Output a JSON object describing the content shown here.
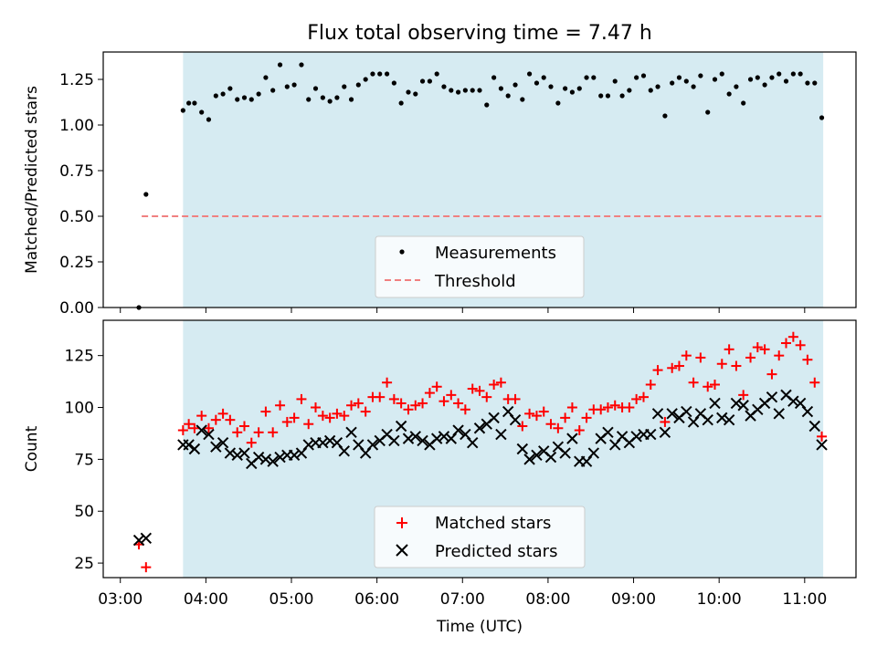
{
  "chart_data": [
    {
      "type": "scatter",
      "title": "Flux total observing time = 7.47 h",
      "ylabel": "Matched/Predicted stars",
      "xlabel": "",
      "ylim": [
        0,
        1.4
      ],
      "xlim_hours": [
        2.8,
        11.6
      ],
      "yticks": [
        0.0,
        0.25,
        0.5,
        0.75,
        1.0,
        1.25
      ],
      "ytick_labels": [
        "0.00",
        "0.25",
        "0.50",
        "0.75",
        "1.00",
        "1.25"
      ],
      "observing_window_hours": [
        3.733,
        11.217
      ],
      "threshold": {
        "name": "Threshold",
        "value": 0.5,
        "x_start_hours": 3.25,
        "x_end_hours": 11.2,
        "color": "#f08080"
      },
      "legend": {
        "placement": "lower-center",
        "entries": [
          "Measurements",
          "Threshold"
        ]
      },
      "series": [
        {
          "name": "Measurements",
          "color": "#000000",
          "x": [
            3.217,
            3.3,
            3.733,
            3.8,
            3.867,
            3.95,
            4.033,
            4.117,
            4.2,
            4.283,
            4.367,
            4.45,
            4.533,
            4.617,
            4.7,
            4.783,
            4.867,
            4.95,
            5.033,
            5.117,
            5.2,
            5.283,
            5.367,
            5.45,
            5.533,
            5.617,
            5.7,
            5.783,
            5.867,
            5.95,
            6.033,
            6.117,
            6.2,
            6.283,
            6.367,
            6.45,
            6.533,
            6.617,
            6.7,
            6.783,
            6.867,
            6.95,
            7.033,
            7.117,
            7.2,
            7.283,
            7.367,
            7.45,
            7.533,
            7.617,
            7.7,
            7.783,
            7.867,
            7.95,
            8.033,
            8.117,
            8.2,
            8.283,
            8.367,
            8.45,
            8.533,
            8.617,
            8.7,
            8.783,
            8.867,
            8.95,
            9.033,
            9.117,
            9.2,
            9.283,
            9.367,
            9.45,
            9.533,
            9.617,
            9.7,
            9.783,
            9.867,
            9.95,
            10.033,
            10.117,
            10.2,
            10.283,
            10.367,
            10.45,
            10.533,
            10.617,
            10.7,
            10.783,
            10.867,
            10.95,
            11.033,
            11.117,
            11.2
          ],
          "y": [
            0.0,
            0.62,
            1.08,
            1.12,
            1.12,
            1.07,
            1.03,
            1.16,
            1.17,
            1.2,
            1.14,
            1.15,
            1.14,
            1.17,
            1.26,
            1.19,
            1.33,
            1.21,
            1.22,
            1.33,
            1.14,
            1.2,
            1.15,
            1.13,
            1.15,
            1.21,
            1.14,
            1.22,
            1.25,
            1.28,
            1.28,
            1.28,
            1.23,
            1.12,
            1.18,
            1.17,
            1.24,
            1.24,
            1.28,
            1.21,
            1.19,
            1.18,
            1.19,
            1.19,
            1.19,
            1.11,
            1.26,
            1.2,
            1.16,
            1.22,
            1.14,
            1.28,
            1.23,
            1.26,
            1.21,
            1.12,
            1.2,
            1.18,
            1.2,
            1.26,
            1.26,
            1.16,
            1.16,
            1.24,
            1.16,
            1.19,
            1.26,
            1.27,
            1.19,
            1.21,
            1.05,
            1.23,
            1.26,
            1.24,
            1.21,
            1.27,
            1.07,
            1.25,
            1.28,
            1.17,
            1.21,
            1.12,
            1.25,
            1.26,
            1.22,
            1.26,
            1.28,
            1.24,
            1.28,
            1.28,
            1.23,
            1.23,
            1.04
          ]
        }
      ]
    },
    {
      "type": "scatter",
      "title": "",
      "ylabel": "Count",
      "xlabel": "Time (UTC)",
      "ylim": [
        18,
        142
      ],
      "xlim_hours": [
        2.8,
        11.6
      ],
      "yticks": [
        25,
        50,
        75,
        100,
        125
      ],
      "ytick_labels": [
        "25",
        "50",
        "75",
        "100",
        "125"
      ],
      "xticks_hours": [
        3,
        4,
        5,
        6,
        7,
        8,
        9,
        10,
        11
      ],
      "xtick_labels": [
        "03:00",
        "04:00",
        "05:00",
        "06:00",
        "07:00",
        "08:00",
        "09:00",
        "10:00",
        "11:00"
      ],
      "observing_window_hours": [
        3.733,
        11.217
      ],
      "legend": {
        "placement": "lower-center",
        "entries": [
          "Matched stars",
          "Predicted stars"
        ]
      },
      "series": [
        {
          "name": "Matched stars",
          "marker": "plus",
          "color": "#ff0000",
          "x": [
            3.217,
            3.3,
            3.733,
            3.8,
            3.867,
            3.95,
            4.033,
            4.117,
            4.2,
            4.283,
            4.367,
            4.45,
            4.533,
            4.617,
            4.7,
            4.783,
            4.867,
            4.95,
            5.033,
            5.117,
            5.2,
            5.283,
            5.367,
            5.45,
            5.533,
            5.617,
            5.7,
            5.783,
            5.867,
            5.95,
            6.033,
            6.117,
            6.2,
            6.283,
            6.367,
            6.45,
            6.533,
            6.617,
            6.7,
            6.783,
            6.867,
            6.95,
            7.033,
            7.117,
            7.2,
            7.283,
            7.367,
            7.45,
            7.533,
            7.617,
            7.7,
            7.783,
            7.867,
            7.95,
            8.033,
            8.117,
            8.2,
            8.283,
            8.367,
            8.45,
            8.533,
            8.617,
            8.7,
            8.783,
            8.867,
            8.95,
            9.033,
            9.117,
            9.2,
            9.283,
            9.367,
            9.45,
            9.533,
            9.617,
            9.7,
            9.783,
            9.867,
            9.95,
            10.033,
            10.117,
            10.2,
            10.283,
            10.367,
            10.45,
            10.533,
            10.617,
            10.7,
            10.783,
            10.867,
            10.95,
            11.033,
            11.117,
            11.2
          ],
          "y": [
            34,
            23,
            89,
            92,
            90,
            96,
            90,
            94,
            97,
            94,
            88,
            91,
            83,
            88,
            98,
            88,
            101,
            93,
            95,
            104,
            92,
            100,
            96,
            95,
            97,
            96,
            101,
            102,
            98,
            105,
            105,
            112,
            104,
            102,
            99,
            101,
            102,
            107,
            110,
            103,
            106,
            102,
            99,
            109,
            108,
            105,
            111,
            112,
            104,
            104,
            91,
            97,
            96,
            98,
            92,
            90,
            95,
            100,
            89,
            95,
            99,
            99,
            100,
            101,
            100,
            100,
            104,
            105,
            111,
            118,
            93,
            119,
            120,
            125,
            112,
            124,
            110,
            111,
            121,
            128,
            120,
            106,
            124,
            129,
            128,
            116,
            125,
            131,
            134,
            130,
            123,
            112,
            86
          ]
        },
        {
          "name": "Predicted stars",
          "marker": "x",
          "color": "#000000",
          "x": [
            3.217,
            3.3,
            3.733,
            3.8,
            3.867,
            3.95,
            4.033,
            4.117,
            4.2,
            4.283,
            4.367,
            4.45,
            4.533,
            4.617,
            4.7,
            4.783,
            4.867,
            4.95,
            5.033,
            5.117,
            5.2,
            5.283,
            5.367,
            5.45,
            5.533,
            5.617,
            5.7,
            5.783,
            5.867,
            5.95,
            6.033,
            6.117,
            6.2,
            6.283,
            6.367,
            6.45,
            6.533,
            6.617,
            6.7,
            6.783,
            6.867,
            6.95,
            7.033,
            7.117,
            7.2,
            7.283,
            7.367,
            7.45,
            7.533,
            7.617,
            7.7,
            7.783,
            7.867,
            7.95,
            8.033,
            8.117,
            8.2,
            8.283,
            8.367,
            8.45,
            8.533,
            8.617,
            8.7,
            8.783,
            8.867,
            8.95,
            9.033,
            9.117,
            9.2,
            9.283,
            9.367,
            9.45,
            9.533,
            9.617,
            9.7,
            9.783,
            9.867,
            9.95,
            10.033,
            10.117,
            10.2,
            10.283,
            10.367,
            10.45,
            10.533,
            10.617,
            10.7,
            10.783,
            10.867,
            10.95,
            11.033,
            11.117,
            11.2
          ],
          "y": [
            36,
            37,
            82,
            82,
            80,
            89,
            87,
            81,
            83,
            78,
            77,
            78,
            73,
            76,
            75,
            74,
            76,
            77,
            77,
            78,
            82,
            83,
            83,
            84,
            83,
            79,
            88,
            82,
            78,
            82,
            84,
            87,
            84,
            91,
            85,
            86,
            84,
            82,
            85,
            86,
            85,
            89,
            87,
            83,
            90,
            92,
            95,
            87,
            98,
            94,
            80,
            75,
            77,
            79,
            76,
            81,
            78,
            85,
            74,
            74,
            78,
            85,
            88,
            82,
            86,
            83,
            86,
            87,
            87,
            97,
            88,
            97,
            95,
            98,
            93,
            97,
            94,
            102,
            95,
            94,
            102,
            101,
            96,
            99,
            102,
            105,
            97,
            106,
            103,
            102,
            98,
            91,
            82
          ]
        }
      ]
    }
  ]
}
